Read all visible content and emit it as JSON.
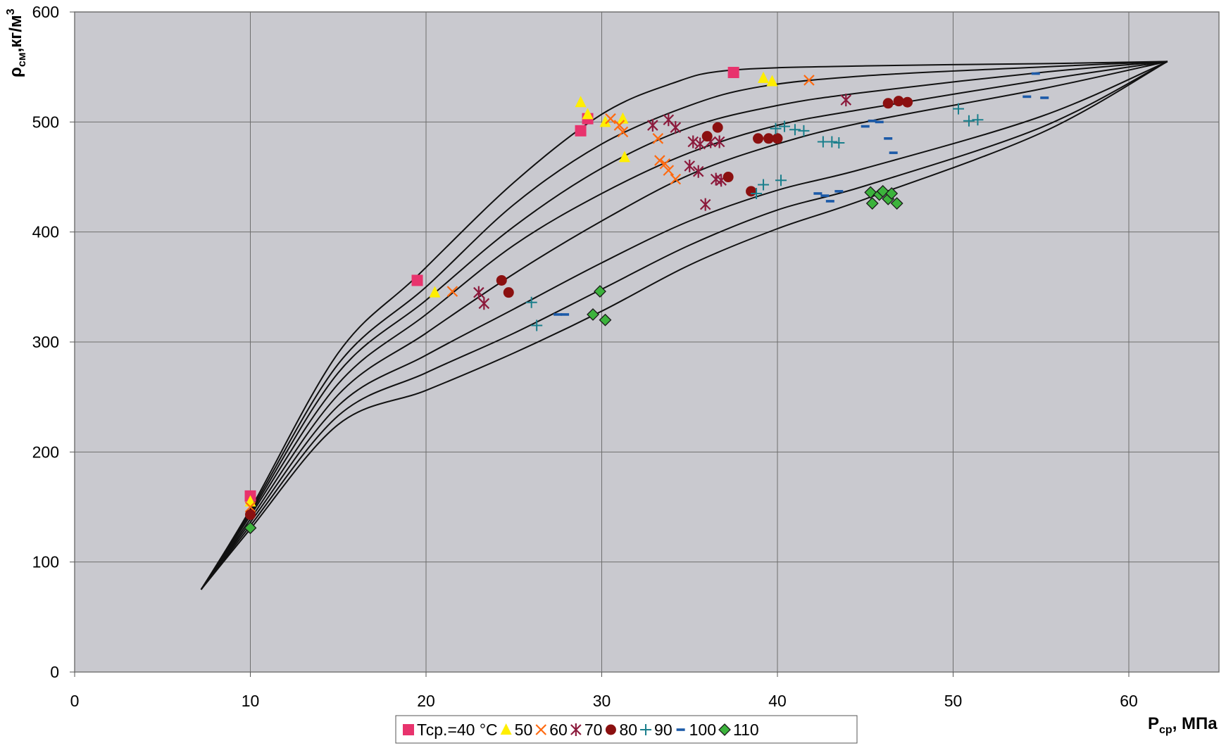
{
  "chart_data": {
    "type": "scatter",
    "title": "",
    "xlabel": {
      "main": "P",
      "sub": "ср",
      "rest": ", МПа"
    },
    "ylabel": {
      "main": "ρ",
      "sub": "см",
      "rest": ",кг/м",
      "sup": "3"
    },
    "xlim": [
      0,
      65
    ],
    "ylim": [
      0,
      600
    ],
    "x_ticks": [
      0,
      10,
      20,
      30,
      40,
      50,
      60
    ],
    "y_ticks": [
      0,
      100,
      200,
      300,
      400,
      500,
      600
    ],
    "grid": true,
    "legend_position": "bottom-center",
    "curves": [
      [
        [
          7.2,
          75
        ],
        [
          10,
          148
        ],
        [
          15,
          290
        ],
        [
          19.5,
          360
        ],
        [
          25,
          445
        ],
        [
          30,
          507
        ],
        [
          34,
          535
        ],
        [
          37.3,
          547
        ],
        [
          45,
          551
        ],
        [
          55,
          553
        ],
        [
          62.2,
          555
        ]
      ],
      [
        [
          7.2,
          75
        ],
        [
          10,
          146
        ],
        [
          15,
          280
        ],
        [
          20,
          350
        ],
        [
          25,
          425
        ],
        [
          30,
          480
        ],
        [
          35,
          515
        ],
        [
          39,
          532
        ],
        [
          45,
          542
        ],
        [
          55,
          550
        ],
        [
          62.2,
          555
        ]
      ],
      [
        [
          7.2,
          75
        ],
        [
          10,
          144
        ],
        [
          15,
          272
        ],
        [
          20,
          338
        ],
        [
          25,
          405
        ],
        [
          30,
          458
        ],
        [
          35,
          495
        ],
        [
          40,
          515
        ],
        [
          45,
          527
        ],
        [
          55,
          545
        ],
        [
          62.2,
          555
        ]
      ],
      [
        [
          7.2,
          75
        ],
        [
          10,
          142
        ],
        [
          15,
          262
        ],
        [
          20,
          325
        ],
        [
          25,
          388
        ],
        [
          30,
          435
        ],
        [
          35,
          472
        ],
        [
          40,
          497
        ],
        [
          45,
          512
        ],
        [
          55,
          538
        ],
        [
          62.2,
          555
        ]
      ],
      [
        [
          7.2,
          75
        ],
        [
          10,
          139
        ],
        [
          15,
          252
        ],
        [
          20,
          308
        ],
        [
          25,
          362
        ],
        [
          30,
          410
        ],
        [
          35,
          452
        ],
        [
          40,
          480
        ],
        [
          45,
          500
        ],
        [
          55,
          530
        ],
        [
          62.2,
          555
        ]
      ],
      [
        [
          7.2,
          75
        ],
        [
          10,
          136
        ],
        [
          15,
          242
        ],
        [
          20,
          288
        ],
        [
          25,
          330
        ],
        [
          30,
          372
        ],
        [
          35,
          410
        ],
        [
          40,
          438
        ],
        [
          45,
          458
        ],
        [
          55,
          505
        ],
        [
          62.2,
          555
        ]
      ],
      [
        [
          7.2,
          75
        ],
        [
          10,
          133
        ],
        [
          15,
          233
        ],
        [
          20,
          272
        ],
        [
          25,
          308
        ],
        [
          30,
          348
        ],
        [
          35,
          388
        ],
        [
          40,
          420
        ],
        [
          45,
          442
        ],
        [
          55,
          495
        ],
        [
          62.2,
          555
        ]
      ],
      [
        [
          7.2,
          75
        ],
        [
          10,
          130
        ],
        [
          15,
          225
        ],
        [
          20,
          256
        ],
        [
          25,
          290
        ],
        [
          30,
          328
        ],
        [
          35,
          370
        ],
        [
          40,
          403
        ],
        [
          45,
          430
        ],
        [
          55,
          490
        ],
        [
          62.2,
          555
        ]
      ]
    ],
    "series": [
      {
        "name": "Тср.=40 °С",
        "marker": "square",
        "color": "#e8336d",
        "points": [
          [
            10,
            160
          ],
          [
            19.5,
            356
          ],
          [
            28.8,
            492
          ],
          [
            29.2,
            503
          ],
          [
            37.5,
            545
          ]
        ]
      },
      {
        "name": "50",
        "marker": "triangle",
        "color": "#ffee00",
        "points": [
          [
            10,
            155
          ],
          [
            20.5,
            345
          ],
          [
            28.8,
            518
          ],
          [
            29.2,
            507
          ],
          [
            30.2,
            500
          ],
          [
            31.2,
            503
          ],
          [
            31.3,
            468
          ],
          [
            39.2,
            540
          ],
          [
            39.7,
            537
          ]
        ]
      },
      {
        "name": "60",
        "marker": "x",
        "color": "#ff6a10",
        "points": [
          [
            10,
            150
          ],
          [
            21.5,
            346
          ],
          [
            30.5,
            503
          ],
          [
            31,
            497
          ],
          [
            31.2,
            491
          ],
          [
            33.2,
            485
          ],
          [
            33.3,
            465
          ],
          [
            33.6,
            462
          ],
          [
            33.8,
            456
          ],
          [
            34.2,
            448
          ],
          [
            41.8,
            538
          ]
        ]
      },
      {
        "name": "70",
        "marker": "star",
        "color": "#8c1a3c",
        "points": [
          [
            23,
            345
          ],
          [
            23.3,
            335
          ],
          [
            32.9,
            497
          ],
          [
            33.8,
            502
          ],
          [
            34.2,
            495
          ],
          [
            35,
            460
          ],
          [
            35.2,
            482
          ],
          [
            35.5,
            455
          ],
          [
            35.6,
            480
          ],
          [
            35.9,
            425
          ],
          [
            36.2,
            482
          ],
          [
            36.5,
            448
          ],
          [
            36.7,
            482
          ],
          [
            36.8,
            447
          ],
          [
            43.9,
            520
          ]
        ]
      },
      {
        "name": "80",
        "marker": "circle",
        "color": "#8b1010",
        "points": [
          [
            10,
            143
          ],
          [
            24.3,
            356
          ],
          [
            24.7,
            345
          ],
          [
            36,
            487
          ],
          [
            36.6,
            495
          ],
          [
            37.2,
            450
          ],
          [
            38.5,
            437
          ],
          [
            38.9,
            485
          ],
          [
            39.5,
            485
          ],
          [
            40,
            485
          ],
          [
            46.3,
            517
          ],
          [
            46.9,
            519
          ],
          [
            47.4,
            518
          ]
        ]
      },
      {
        "name": "90",
        "marker": "plus",
        "color": "#1a7f8c",
        "points": [
          [
            26,
            336
          ],
          [
            26.3,
            315
          ],
          [
            38.8,
            435
          ],
          [
            39.2,
            443
          ],
          [
            39.9,
            494
          ],
          [
            40.2,
            447
          ],
          [
            40.4,
            496
          ],
          [
            41,
            493
          ],
          [
            41.5,
            492
          ],
          [
            42.6,
            482
          ],
          [
            43.1,
            482
          ],
          [
            43.5,
            481
          ],
          [
            50.3,
            512
          ],
          [
            50.9,
            501
          ],
          [
            51.4,
            502
          ]
        ]
      },
      {
        "name": "100",
        "marker": "dash",
        "color": "#1c5aa8",
        "points": [
          [
            27.5,
            325
          ],
          [
            27.9,
            325
          ],
          [
            42.3,
            435
          ],
          [
            42.7,
            433
          ],
          [
            43,
            428
          ],
          [
            43.5,
            437
          ],
          [
            45,
            496
          ],
          [
            45.4,
            501
          ],
          [
            45.8,
            500
          ],
          [
            46.3,
            485
          ],
          [
            46.6,
            472
          ],
          [
            54.2,
            523
          ],
          [
            54.7,
            544
          ],
          [
            55.2,
            522
          ]
        ]
      },
      {
        "name": "110",
        "marker": "diamond",
        "color": "#3cb33c",
        "points": [
          [
            10,
            131
          ],
          [
            29.5,
            325
          ],
          [
            29.9,
            346
          ],
          [
            30.2,
            320
          ],
          [
            45.3,
            436
          ],
          [
            45.4,
            426
          ],
          [
            45.8,
            434
          ],
          [
            46,
            437
          ],
          [
            46.3,
            430
          ],
          [
            46.5,
            435
          ],
          [
            46.8,
            426
          ]
        ]
      }
    ]
  }
}
